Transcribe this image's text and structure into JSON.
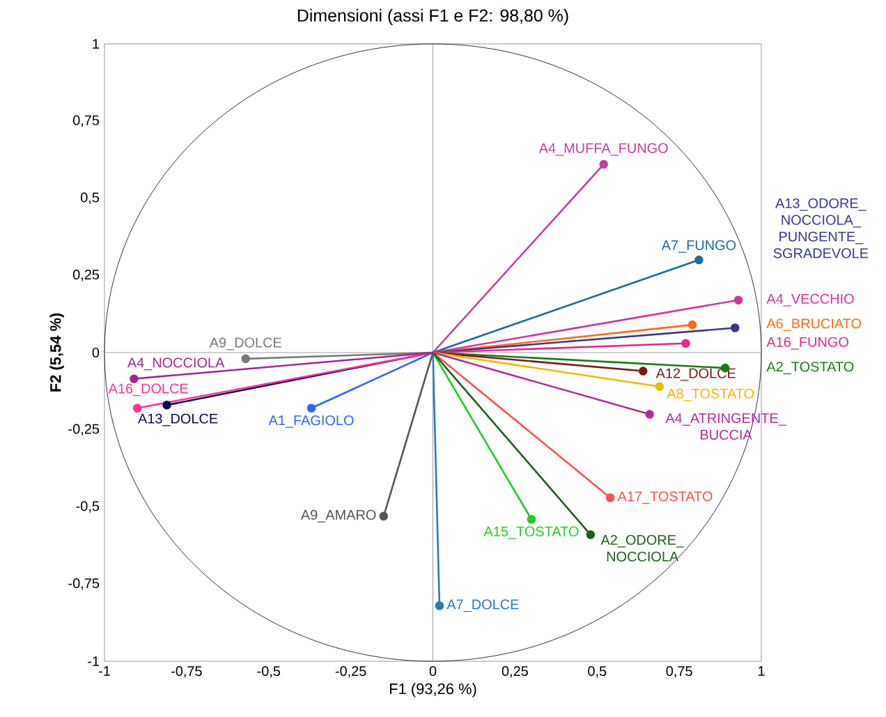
{
  "chart_data": {
    "type": "line",
    "title": "Dimensioni (assi F1 e F2: 98,80 %)",
    "xlabel": "F1 (93,26 %)",
    "ylabel": "F2 (5,54 %)",
    "xlim": [
      -1,
      1
    ],
    "ylim": [
      -1,
      1
    ],
    "xticks": [
      -1,
      {
        "value": -0.75,
        "label": "-0,75"
      },
      {
        "value": -0.5,
        "label": "-0,5"
      },
      {
        "value": -0.25,
        "label": "-0,25"
      },
      0,
      {
        "value": 0.25,
        "label": "0,25"
      },
      {
        "value": 0.5,
        "label": "0,5"
      },
      {
        "value": 0.75,
        "label": "0,75"
      },
      1
    ],
    "yticks": [
      -1,
      {
        "value": -0.75,
        "label": "-0,75"
      },
      {
        "value": -0.5,
        "label": "-0,5"
      },
      {
        "value": -0.25,
        "label": "-0,25"
      },
      0,
      {
        "value": 0.25,
        "label": "0,25"
      },
      {
        "value": 0.5,
        "label": "0,5"
      },
      {
        "value": 0.75,
        "label": "0,75"
      },
      1
    ],
    "grid": false,
    "marker": "circle",
    "line_style": "solid",
    "ref_lines": [
      {
        "axis": "x",
        "value": 0,
        "color": "#808080"
      },
      {
        "axis": "y",
        "value": 0,
        "color": "#8c8c8c"
      }
    ],
    "series": [
      {
        "name": "A4_MUFFA_FUNGO",
        "color": "#c03fa0",
        "x": [
          0,
          0.52
        ],
        "values": [
          0,
          0.61
        ]
      },
      {
        "name": "A7_FUNGO",
        "color": "#1f6b99",
        "x": [
          0,
          0.81
        ],
        "values": [
          0,
          0.3
        ]
      },
      {
        "name": "A4_VECCHIO",
        "color": "#d6359c",
        "x": [
          0,
          0.93
        ],
        "values": [
          0,
          0.17
        ]
      },
      {
        "name": "A6_BRUCIATO",
        "color": "#ff6a13",
        "x": [
          0,
          0.79
        ],
        "values": [
          0,
          0.09
        ]
      },
      {
        "name": "A13_ODORE_NOCCIOLA_PUNGENTE_SGRADEVOLE",
        "color": "#3a3a8c",
        "x": [
          0,
          0.92
        ],
        "values": [
          0,
          0.08
        ]
      },
      {
        "name": "A16_FUNGO",
        "color": "#e8288c",
        "x": [
          0,
          0.77
        ],
        "values": [
          0,
          0.03
        ]
      },
      {
        "name": "A2_TOSTATO",
        "color": "#1a7a1a",
        "x": [
          0,
          0.89
        ],
        "values": [
          0,
          -0.05
        ]
      },
      {
        "name": "A12_DOLCE",
        "color": "#7a1a1a",
        "x": [
          0,
          0.64
        ],
        "values": [
          0,
          -0.06
        ]
      },
      {
        "name": "A8_TOSTATO",
        "color": "#f5b800",
        "x": [
          0,
          0.69
        ],
        "values": [
          0,
          -0.11
        ]
      },
      {
        "name": "A4_ATRINGENTE_BUCCIA",
        "color": "#b0309a",
        "x": [
          0,
          0.66
        ],
        "values": [
          0,
          -0.2
        ]
      },
      {
        "name": "A17_TOSTATO",
        "color": "#ff5050",
        "x": [
          0,
          0.54
        ],
        "values": [
          0,
          -0.47
        ]
      },
      {
        "name": "A15_TOSTATO",
        "color": "#22cc22",
        "x": [
          0,
          0.3
        ],
        "values": [
          0,
          -0.54
        ]
      },
      {
        "name": "A2_ODORE_NOCCIOLA",
        "color": "#1e5e1e",
        "x": [
          0,
          0.48
        ],
        "values": [
          0,
          -0.59
        ]
      },
      {
        "name": "A7_DOLCE",
        "color": "#2a7bb0",
        "x": [
          0,
          0.02
        ],
        "values": [
          0,
          -0.82
        ]
      },
      {
        "name": "A9_AMARO",
        "color": "#555555",
        "x": [
          0,
          -0.15
        ],
        "values": [
          0,
          -0.53
        ]
      },
      {
        "name": "A9_DOLCE",
        "color": "#7a7a7a",
        "x": [
          0,
          -0.57
        ],
        "values": [
          0,
          -0.02
        ]
      },
      {
        "name": "A1_FAGIOLO",
        "color": "#3366ff",
        "x": [
          0,
          -0.37
        ],
        "values": [
          0,
          -0.18
        ]
      },
      {
        "name": "A13_DOLCE",
        "color": "#0a0a50",
        "x": [
          0,
          -0.81
        ],
        "values": [
          0,
          -0.17
        ]
      },
      {
        "name": "A16_DOLCE",
        "color": "#ff3399",
        "x": [
          0,
          -0.9
        ],
        "values": [
          0,
          -0.18
        ]
      },
      {
        "name": "A4_NOCCIOLA",
        "color": "#a02890",
        "x": [
          0,
          -0.91
        ],
        "values": [
          0,
          -0.085
        ]
      }
    ]
  }
}
